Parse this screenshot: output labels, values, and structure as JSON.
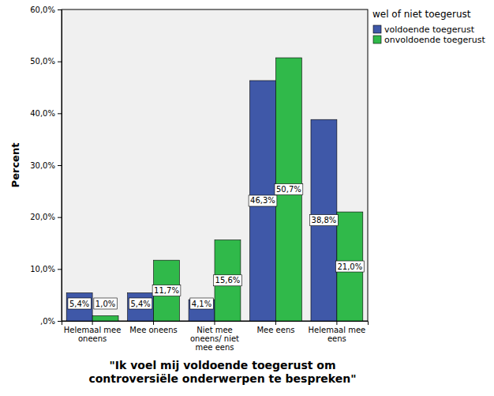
{
  "chart_data": {
    "type": "bar",
    "x_label": "\"Ik voel mij voldoende toegerust om controversiële onderwerpen te bespreken\"",
    "y_label": "Percent",
    "legend_title": "wel of niet toegerust",
    "categories": [
      "Helemaal mee oneens",
      "Mee oneens",
      "Niet mee oneens/ niet mee eens",
      "Mee eens",
      "Helemaal mee eens"
    ],
    "series": [
      {
        "name": "voldoende toegerust",
        "color": "#3f58a8",
        "values": [
          5.4,
          5.4,
          4.1,
          46.3,
          38.8
        ],
        "value_labels": [
          "5,4%",
          "5,4%",
          "4,1%",
          "46,3%",
          "38,8%"
        ]
      },
      {
        "name": "onvoldoende toegerust",
        "color": "#30b94a",
        "values": [
          1.0,
          11.7,
          15.6,
          50.7,
          21.0
        ],
        "value_labels": [
          "1,0%",
          "11,7%",
          "15,6%",
          "50,7%",
          "21,0%"
        ]
      }
    ],
    "ylim": [
      0,
      60
    ],
    "yticks": [
      {
        "value": 0,
        "label": ",0%"
      },
      {
        "value": 10,
        "label": "10,0%"
      },
      {
        "value": 20,
        "label": "20,0%"
      },
      {
        "value": 30,
        "label": "30,0%"
      },
      {
        "value": 40,
        "label": "40,0%"
      },
      {
        "value": 50,
        "label": "50,0%"
      },
      {
        "value": 60,
        "label": "60,0%"
      }
    ],
    "grid": false,
    "legend": "right",
    "data_labels": true
  }
}
